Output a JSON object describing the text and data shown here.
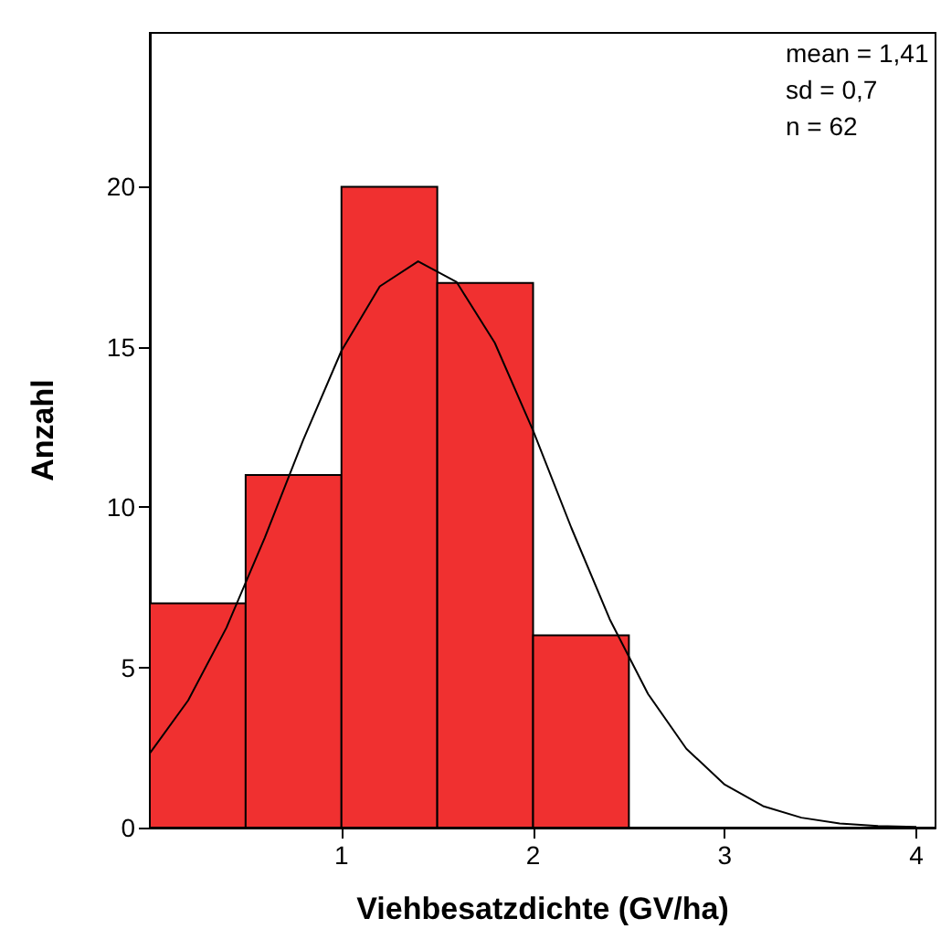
{
  "chart_data": {
    "type": "histogram",
    "xlabel": "Viehbesatzdichte (GV/ha)",
    "ylabel": "Anzahl",
    "annotations": [
      "mean = 1,41",
      "sd = 0,7",
      "n = 62"
    ],
    "bins": [
      0,
      0.5,
      1,
      1.5,
      2,
      2.5
    ],
    "series": [
      {
        "color": "#f03030",
        "values": [
          7,
          11,
          20,
          17,
          6
        ]
      },
      {
        "type": "line",
        "color": "#000000",
        "marker": "none",
        "line_style": "solid",
        "x": [
          0,
          0.2,
          0.4,
          0.6,
          0.8,
          1.0,
          1.2,
          1.4,
          1.6,
          1.8,
          2.0,
          2.2,
          2.4,
          2.6,
          2.8,
          3.0,
          3.2,
          3.4,
          3.6,
          3.8,
          4.0
        ],
        "values": [
          2.32,
          3.97,
          6.24,
          9.05,
          12.09,
          14.88,
          16.89,
          17.67,
          17.03,
          15.13,
          12.39,
          9.35,
          6.5,
          4.17,
          2.46,
          1.34,
          0.67,
          0.31,
          0.13,
          0.05,
          0.02
        ]
      }
    ],
    "xlim": [
      0,
      4.1
    ],
    "xticks": [
      1,
      2,
      3,
      4
    ],
    "ylim": [
      0,
      24.8
    ],
    "yticks": [
      0,
      5,
      10,
      15,
      20
    ],
    "grid": false
  }
}
